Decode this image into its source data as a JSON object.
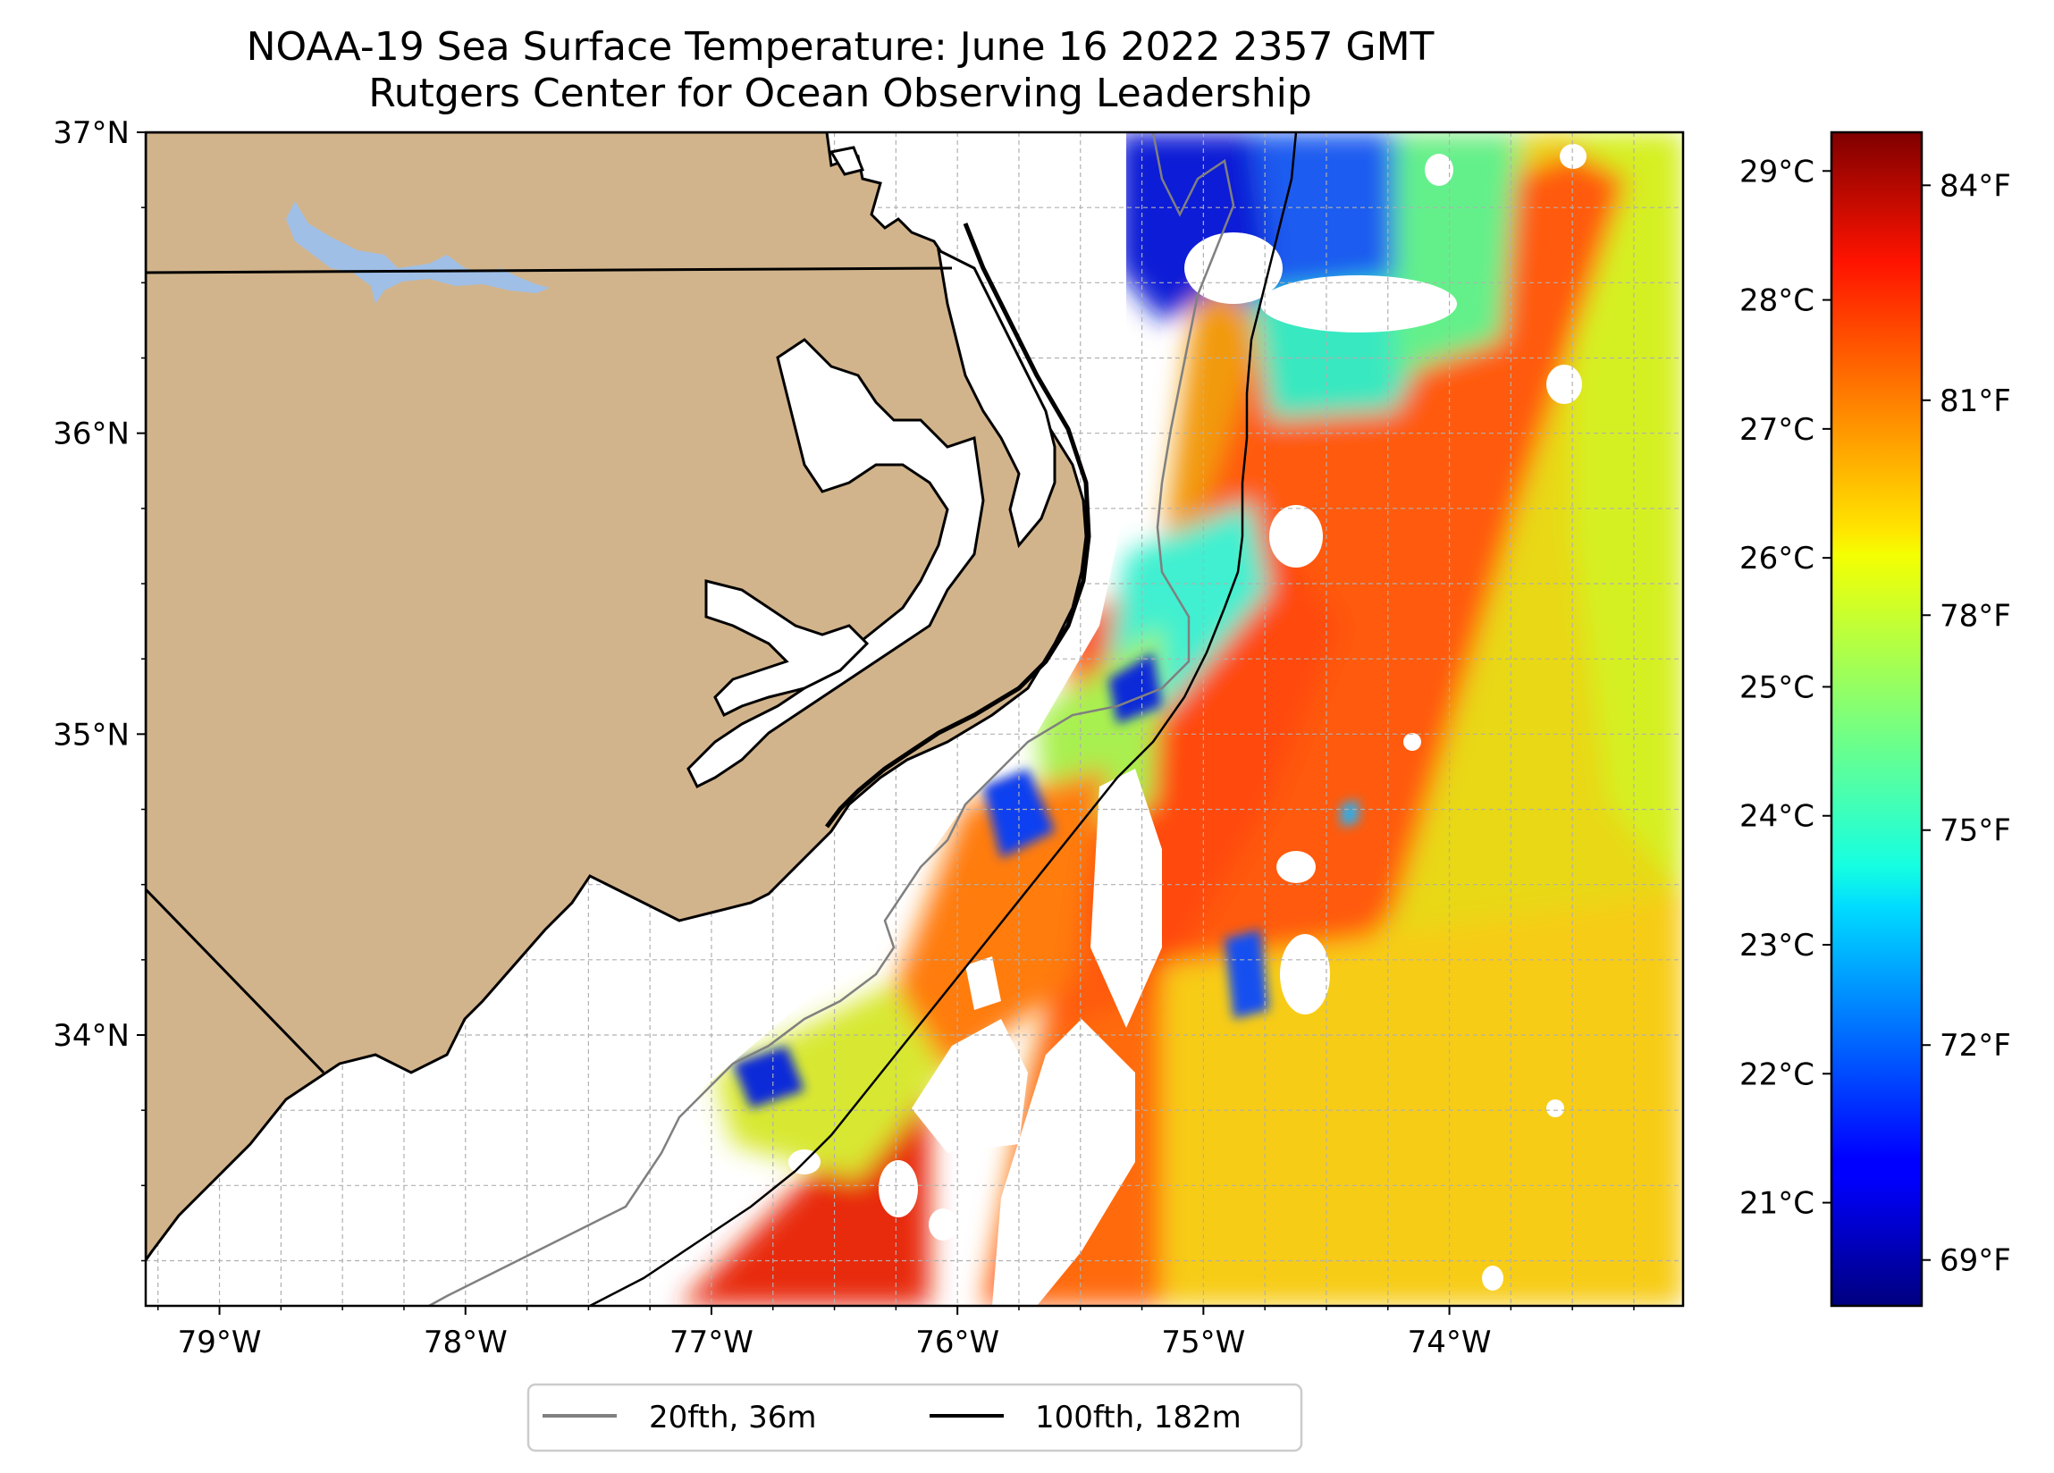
{
  "title": {
    "line1": "NOAA-19 Sea Surface Temperature: June 16 2022 2357 GMT",
    "line2": "Rutgers Center for Ocean Observing Leadership"
  },
  "map": {
    "lon_range": [
      -79.3,
      -73.05
    ],
    "lat_range": [
      33.1,
      37.0
    ],
    "land_color": "#d2b48c",
    "lake_color": "#9fbfe6",
    "gridlines": true,
    "lat_ticks": [
      {
        "value": 37,
        "label": "37°N"
      },
      {
        "value": 36,
        "label": "36°N"
      },
      {
        "value": 35,
        "label": "35°N"
      },
      {
        "value": 34,
        "label": "34°N"
      }
    ],
    "lon_ticks": [
      {
        "value": -79,
        "label": "79°W"
      },
      {
        "value": -78,
        "label": "78°W"
      },
      {
        "value": -77,
        "label": "77°W"
      },
      {
        "value": -76,
        "label": "76°W"
      },
      {
        "value": -75,
        "label": "75°W"
      },
      {
        "value": -74,
        "label": "74°W"
      }
    ]
  },
  "colorbar": {
    "colormap": "jet",
    "celsius_range": [
      20.2,
      29.3
    ],
    "celsius_ticks": [
      {
        "value": 29,
        "label": "29°C"
      },
      {
        "value": 28,
        "label": "28°C"
      },
      {
        "value": 27,
        "label": "27°C"
      },
      {
        "value": 26,
        "label": "26°C"
      },
      {
        "value": 25,
        "label": "25°C"
      },
      {
        "value": 24,
        "label": "24°C"
      },
      {
        "value": 23,
        "label": "23°C"
      },
      {
        "value": 22,
        "label": "22°C"
      },
      {
        "value": 21,
        "label": "21°C"
      }
    ],
    "fahrenheit_ticks": [
      {
        "value": 84,
        "label": "84°F"
      },
      {
        "value": 81,
        "label": "81°F"
      },
      {
        "value": 78,
        "label": "78°F"
      },
      {
        "value": 75,
        "label": "75°F"
      },
      {
        "value": 72,
        "label": "72°F"
      },
      {
        "value": 69,
        "label": "69°F"
      }
    ]
  },
  "legend": {
    "items": [
      {
        "label": "20fth, 36m",
        "color": "#808080"
      },
      {
        "label": "100fth, 182m",
        "color": "#000000"
      }
    ]
  }
}
